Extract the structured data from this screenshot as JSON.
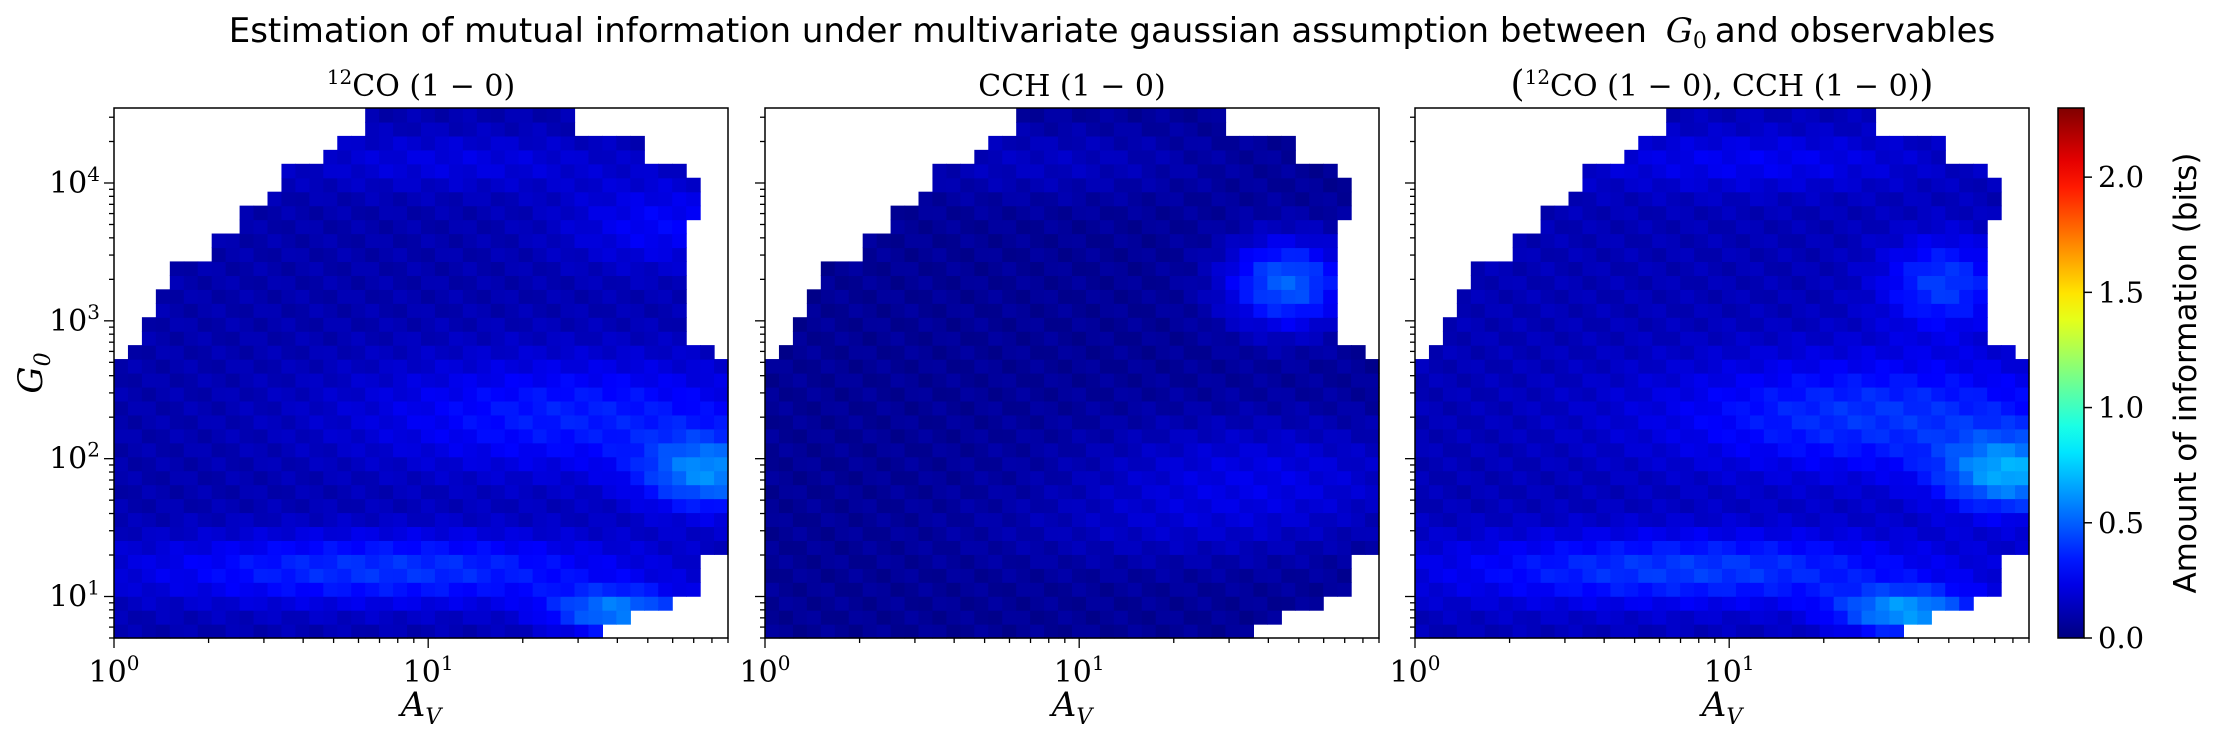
{
  "figure": {
    "suptitle_text": "Estimation of mutual information under multivariate gaussian assumption between",
    "suptitle_symbol": "G",
    "suptitle_sub": "0",
    "suptitle_tail": "and observables"
  },
  "colorbar": {
    "label": "Amount of information (bits)",
    "ticks": [
      "0.0",
      "0.5",
      "1.0",
      "1.5",
      "2.0"
    ],
    "tick_values": [
      0.0,
      0.5,
      1.0,
      1.5,
      2.0
    ],
    "range": [
      0.0,
      2.3
    ],
    "colormap": "jet"
  },
  "chart_data": [
    {
      "type": "heatmap",
      "title": "12CO (1 − 0)",
      "title_parts": {
        "sup": "12",
        "main": "CO (1 − 0)"
      },
      "xlabel": "A_V",
      "ylabel": "G_0",
      "xscale": "log",
      "yscale": "log",
      "xlim": [
        1,
        90
      ],
      "ylim": [
        5,
        35000
      ],
      "xticks": [
        {
          "base": "10",
          "exp": "0"
        },
        {
          "base": "10",
          "exp": "1"
        }
      ],
      "yticks": [
        {
          "base": "10",
          "exp": "1"
        },
        {
          "base": "10",
          "exp": "2"
        },
        {
          "base": "10",
          "exp": "3"
        },
        {
          "base": "10",
          "exp": "4"
        }
      ],
      "description_values": {
        "typical": 0.15,
        "max": 0.85,
        "hotspots": [
          {
            "A_V": 30,
            "G_0": 7,
            "value": 0.85
          },
          {
            "A_V": 80,
            "G_0": 60,
            "value": 0.7
          }
        ]
      }
    },
    {
      "type": "heatmap",
      "title": "CCH (1 − 0)",
      "title_parts": {
        "sup": "",
        "main": "CCH (1 − 0)"
      },
      "xlabel": "A_V",
      "ylabel": "",
      "xscale": "log",
      "yscale": "log",
      "xlim": [
        1,
        90
      ],
      "ylim": [
        5,
        35000
      ],
      "xticks": [
        {
          "base": "10",
          "exp": "0"
        },
        {
          "base": "10",
          "exp": "1"
        }
      ],
      "yticks": [],
      "description_values": {
        "typical": 0.08,
        "max": 0.6,
        "hotspots": [
          {
            "A_V": 45,
            "G_0": 1500,
            "value": 0.6
          }
        ]
      }
    },
    {
      "type": "heatmap",
      "title": "(12CO (1 − 0), CCH (1 − 0))",
      "title_parts": {
        "sup": "12",
        "main": "CO (1 − 0), CCH (1 − 0)"
      },
      "xlabel": "A_V",
      "ylabel": "",
      "xscale": "log",
      "yscale": "log",
      "xlim": [
        1,
        90
      ],
      "ylim": [
        5,
        35000
      ],
      "xticks": [
        {
          "base": "10",
          "exp": "0"
        },
        {
          "base": "10",
          "exp": "1"
        }
      ],
      "yticks": [],
      "description_values": {
        "typical": 0.17,
        "max": 0.9,
        "hotspots": [
          {
            "A_V": 30,
            "G_0": 7,
            "value": 0.9
          },
          {
            "A_V": 80,
            "G_0": 60,
            "value": 0.75
          }
        ]
      }
    }
  ]
}
